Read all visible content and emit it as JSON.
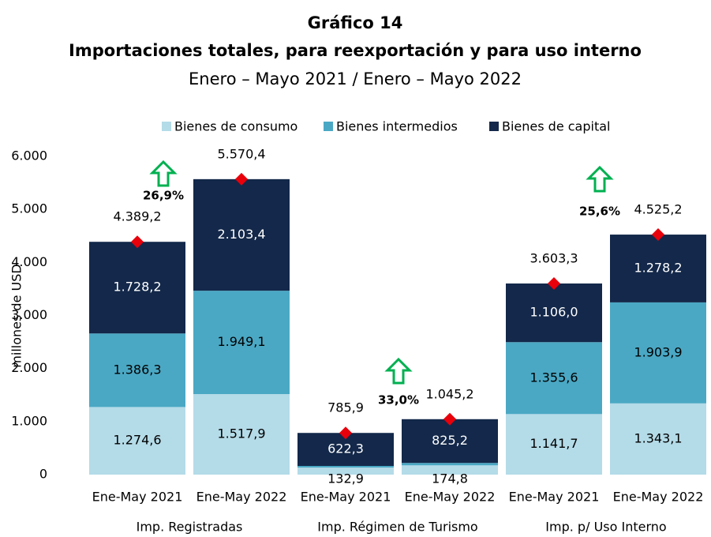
{
  "chart_data": {
    "type": "stacked_bar",
    "title": "Gráfico 14",
    "subtitle": "Importaciones totales, para reexportación y para uso interno",
    "period": "Enero – Mayo 2021 / Enero – Mayo  2022",
    "y_label": "millones de USD",
    "categories": [
      "Ene-May 2021",
      "Ene-May 2022",
      "Ene-May 2021",
      "Ene-May 2022",
      "Ene-May 2021",
      "Ene-May 2022"
    ],
    "groups": [
      "Imp. Registradas",
      "Imp. Régimen de Turismo",
      "Imp. p/ Uso Interno"
    ],
    "series": [
      {
        "name": "Bienes de consumo",
        "color": "#b4dbe8",
        "values": [
          1274.6,
          1517.9,
          132.9,
          174.8,
          1141.7,
          1343.1
        ],
        "value_labels": [
          "1.274,6",
          "1.517,9",
          "132,9",
          "174,8",
          "1.141,7",
          "1.343,1"
        ]
      },
      {
        "name": "Bienes intermedios",
        "color": "#4aa8c4",
        "values": [
          1386.3,
          1949.1,
          30.7,
          45.2,
          1355.6,
          1903.9
        ],
        "value_labels": [
          "1.386,3",
          "1.949,1",
          null,
          null,
          "1.355,6",
          "1.903,9"
        ]
      },
      {
        "name": "Bienes de capital",
        "color": "#13284a",
        "values": [
          1728.2,
          2103.4,
          622.3,
          825.2,
          1106.0,
          1278.2
        ],
        "value_labels": [
          "1.728,2",
          "2.103,4",
          "622,3",
          "825,2",
          "1.106,0",
          "1.278,2"
        ]
      }
    ],
    "totals": {
      "color": "#e8000b",
      "values": [
        4389.2,
        5570.4,
        785.9,
        1045.2,
        3603.3,
        4525.2
      ],
      "value_labels": [
        "4.389,2",
        "5.570,4",
        "785,9",
        "1.045,2",
        "3.603,3",
        "4.525,2"
      ]
    },
    "growth": {
      "color": "#00b050",
      "values": [
        26.9,
        33.0,
        25.6
      ],
      "value_labels": [
        "26,9%",
        "33,0%",
        "25,6%"
      ]
    },
    "ylim": [
      0,
      6000
    ],
    "yticks": [
      0,
      {
        "value": 1000,
        "label": "1.000"
      },
      {
        "value": 2000,
        "label": "2.000"
      },
      {
        "value": 3000,
        "label": "3.000"
      },
      {
        "value": 4000,
        "label": "4.000"
      },
      {
        "value": 5000,
        "label": "5.000"
      },
      {
        "value": 6000,
        "label": "6.000"
      }
    ],
    "legend": "top"
  }
}
